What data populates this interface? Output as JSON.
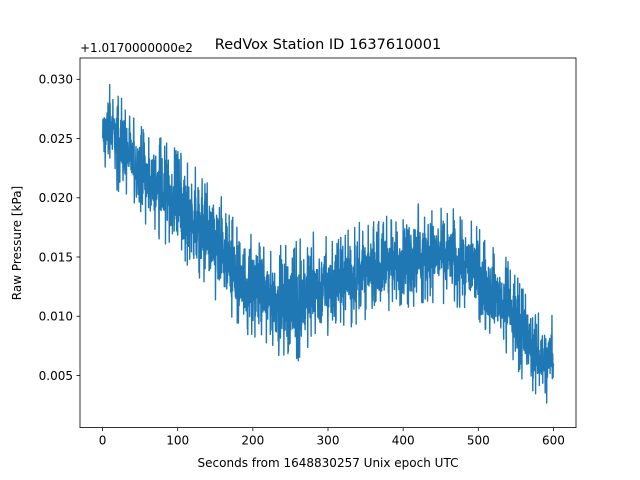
{
  "chart_data": {
    "type": "line",
    "title": "RedVox Station ID 1637610001",
    "xlabel": "Seconds from 1648830257 Unix epoch UTC",
    "ylabel": "Raw Pressure [kPa]",
    "offset_text": "+1.0170000000e2",
    "xlim": [
      -30,
      630
    ],
    "ylim": [
      0.0006,
      0.0318
    ],
    "x_ticks": [
      0,
      100,
      200,
      300,
      400,
      500,
      600
    ],
    "x_tick_labels": [
      "0",
      "100",
      "200",
      "300",
      "400",
      "500",
      "600"
    ],
    "y_ticks": [
      0.005,
      0.01,
      0.015,
      0.02,
      0.025,
      0.03
    ],
    "y_tick_labels": [
      "0.005",
      "0.010",
      "0.015",
      "0.020",
      "0.025",
      "0.030"
    ],
    "grid": false,
    "series": [
      {
        "color": "#1f77b4",
        "envelope": {
          "x": [
            0,
            10,
            20,
            40,
            60,
            80,
            100,
            120,
            140,
            160,
            180,
            200,
            220,
            240,
            260,
            280,
            300,
            320,
            340,
            360,
            380,
            400,
            420,
            440,
            460,
            480,
            500,
            520,
            540,
            560,
            580,
            590,
            600
          ],
          "upper": [
            0.028,
            0.03,
            0.029,
            0.027,
            0.0255,
            0.025,
            0.024,
            0.023,
            0.0215,
            0.02,
            0.018,
            0.0168,
            0.016,
            0.016,
            0.0165,
            0.0178,
            0.0168,
            0.0172,
            0.018,
            0.018,
            0.0185,
            0.0192,
            0.0195,
            0.0195,
            0.0192,
            0.0188,
            0.0175,
            0.016,
            0.0148,
            0.0125,
            0.0105,
            0.01,
            0.0102
          ],
          "lower": [
            0.022,
            0.0225,
            0.0205,
            0.0195,
            0.0175,
            0.016,
            0.0155,
            0.0135,
            0.0118,
            0.01,
            0.009,
            0.008,
            0.0072,
            0.0065,
            0.006,
            0.0068,
            0.008,
            0.0088,
            0.0093,
            0.0098,
            0.0102,
            0.0105,
            0.0108,
            0.011,
            0.011,
            0.0105,
            0.0095,
            0.008,
            0.0065,
            0.0045,
            0.003,
            0.0025,
            0.0035
          ]
        }
      }
    ]
  }
}
